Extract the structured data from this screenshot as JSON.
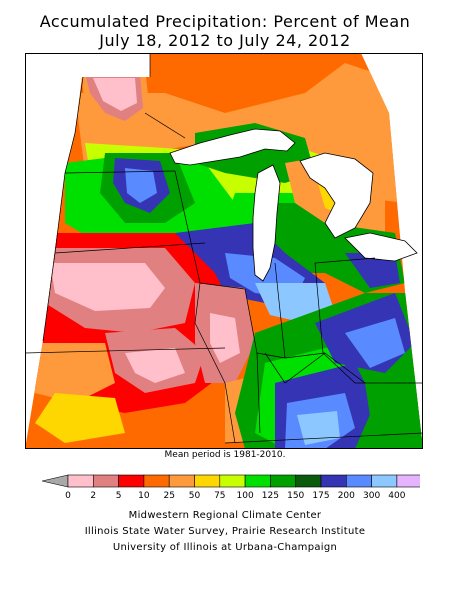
{
  "title": {
    "line1": "Accumulated Precipitation: Percent of Mean",
    "line2": "July 18, 2012 to July 24, 2012"
  },
  "note": "Mean period is 1981-2010.",
  "legend": {
    "labels": [
      "0",
      "2",
      "5",
      "10",
      "25",
      "50",
      "75",
      "100",
      "125",
      "150",
      "175",
      "200",
      "300",
      "400"
    ],
    "colors": [
      "#ffc0cb",
      "#e08080",
      "#ff0000",
      "#ff6a00",
      "#ff9a3c",
      "#ffd700",
      "#c8ff00",
      "#00e000",
      "#00a000",
      "#0c5a0c",
      "#3434b4",
      "#5a8aff",
      "#8cc8ff",
      "#e6b4ff"
    ],
    "below_color": "#a8a8a8"
  },
  "credits": {
    "line1": "Midwestern Regional Climate Center",
    "line2": "Illinois State Water Survey, Prairie Research Institute",
    "line3": "University of Illinois at Urbana-Champaign"
  }
}
